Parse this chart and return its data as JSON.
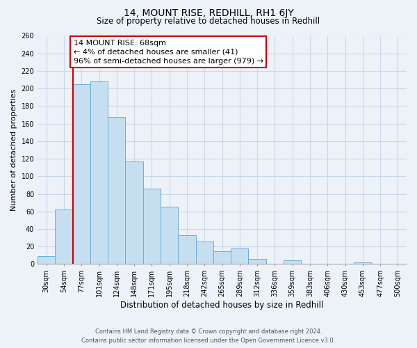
{
  "title": "14, MOUNT RISE, REDHILL, RH1 6JY",
  "subtitle": "Size of property relative to detached houses in Redhill",
  "xlabel": "Distribution of detached houses by size in Redhill",
  "ylabel": "Number of detached properties",
  "bin_labels": [
    "30sqm",
    "54sqm",
    "77sqm",
    "101sqm",
    "124sqm",
    "148sqm",
    "171sqm",
    "195sqm",
    "218sqm",
    "242sqm",
    "265sqm",
    "289sqm",
    "312sqm",
    "336sqm",
    "359sqm",
    "383sqm",
    "406sqm",
    "430sqm",
    "453sqm",
    "477sqm",
    "500sqm"
  ],
  "bar_values": [
    9,
    62,
    205,
    208,
    168,
    117,
    86,
    65,
    33,
    26,
    15,
    18,
    6,
    0,
    4,
    0,
    0,
    0,
    2,
    0,
    0
  ],
  "bar_color": "#c5dff0",
  "bar_edge_color": "#6aaed6",
  "vline_x_idx": 1.5,
  "vline_color": "#cc0000",
  "ylim_max": 260,
  "yticks": [
    0,
    20,
    40,
    60,
    80,
    100,
    120,
    140,
    160,
    180,
    200,
    220,
    240,
    260
  ],
  "annotation_text": "14 MOUNT RISE: 68sqm\n← 4% of detached houses are smaller (41)\n96% of semi-detached houses are larger (979) →",
  "annotation_box_facecolor": "#ffffff",
  "annotation_box_edgecolor": "#cc0000",
  "footer_line1": "Contains HM Land Registry data © Crown copyright and database right 2024.",
  "footer_line2": "Contains public sector information licensed under the Open Government Licence v3.0.",
  "background_color": "#edf2f9",
  "grid_color": "#c8d8e8",
  "title_fontsize": 10,
  "subtitle_fontsize": 8.5,
  "ylabel_fontsize": 8,
  "xlabel_fontsize": 8.5,
  "tick_fontsize": 7,
  "annotation_fontsize": 8,
  "footer_fontsize": 6
}
